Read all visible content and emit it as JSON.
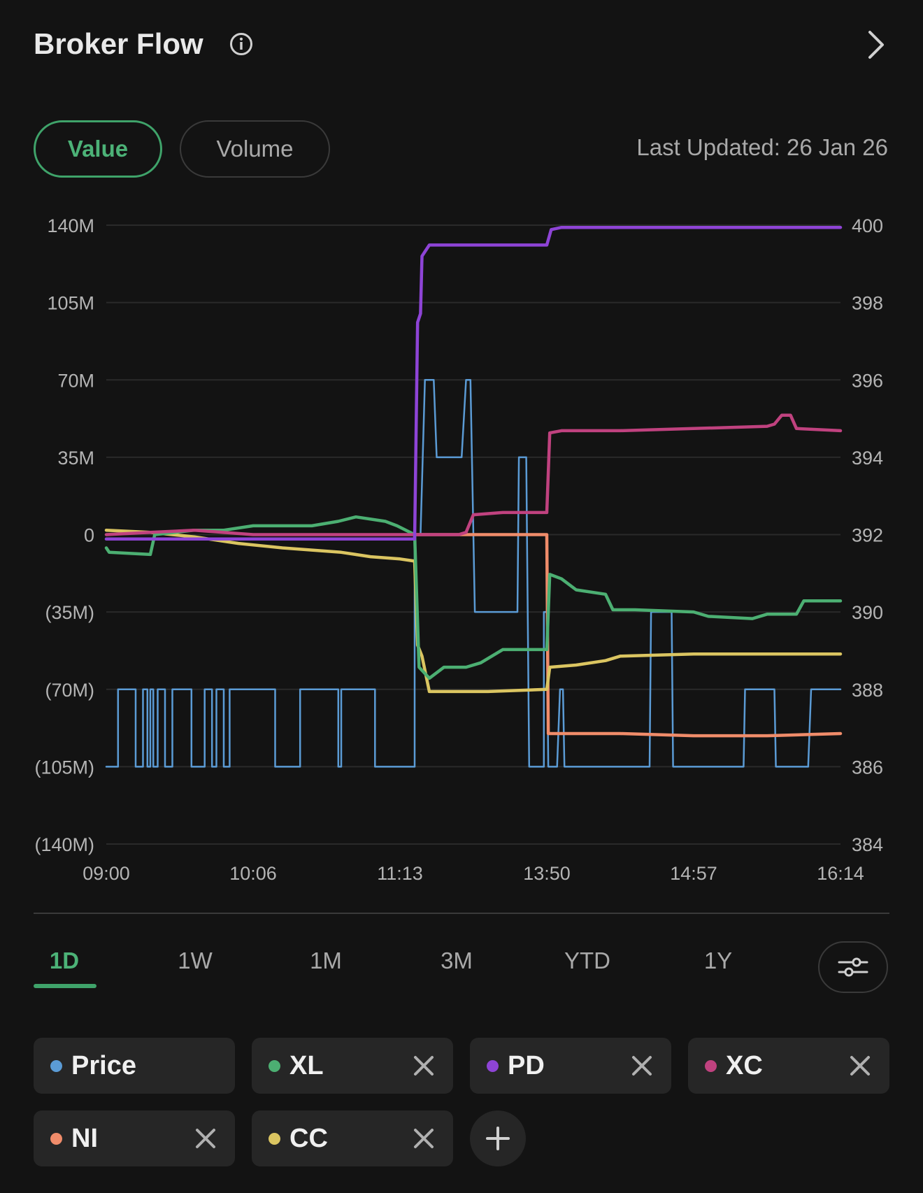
{
  "header": {
    "title": "Broker Flow",
    "info_icon": "info-icon",
    "next_icon": "chevron-right-icon"
  },
  "toggle": {
    "value_label": "Value",
    "volume_label": "Volume",
    "selected": "Value"
  },
  "last_updated": "Last Updated: 26 Jan 26",
  "chart_data": {
    "type": "line",
    "x_tick_labels": [
      "09:00",
      "10:06",
      "11:13",
      "13:50",
      "14:57",
      "16:14"
    ],
    "y_left_tick_labels": [
      "140M",
      "105M",
      "70M",
      "35M",
      "0",
      "(35M)",
      "(70M)",
      "(105M)",
      "(140M)"
    ],
    "y_right_tick_labels": [
      "400",
      "398",
      "396",
      "394",
      "392",
      "390",
      "388",
      "386",
      "384"
    ],
    "y_left_range": [
      -140,
      140
    ],
    "y_left_unit": "M",
    "y_right_range": [
      384,
      400
    ],
    "grid": "horizontal",
    "x_domain": [
      0,
      5
    ],
    "series": [
      {
        "name": "Price",
        "axis": "right",
        "color": "#5b9bd5",
        "points": [
          [
            0,
            386
          ],
          [
            0.08,
            386
          ],
          [
            0.08,
            388
          ],
          [
            0.2,
            388
          ],
          [
            0.2,
            386
          ],
          [
            0.25,
            386
          ],
          [
            0.25,
            388
          ],
          [
            0.28,
            388
          ],
          [
            0.28,
            386
          ],
          [
            0.3,
            386
          ],
          [
            0.3,
            388
          ],
          [
            0.32,
            388
          ],
          [
            0.32,
            386
          ],
          [
            0.35,
            386
          ],
          [
            0.35,
            388
          ],
          [
            0.4,
            388
          ],
          [
            0.4,
            386
          ],
          [
            0.45,
            386
          ],
          [
            0.45,
            388
          ],
          [
            0.58,
            388
          ],
          [
            0.58,
            386
          ],
          [
            0.67,
            386
          ],
          [
            0.67,
            388
          ],
          [
            0.72,
            388
          ],
          [
            0.72,
            386
          ],
          [
            0.75,
            386
          ],
          [
            0.75,
            388
          ],
          [
            0.8,
            388
          ],
          [
            0.8,
            386
          ],
          [
            0.84,
            386
          ],
          [
            0.84,
            388
          ],
          [
            1.15,
            388
          ],
          [
            1.15,
            386
          ],
          [
            1.32,
            386
          ],
          [
            1.32,
            388
          ],
          [
            1.58,
            388
          ],
          [
            1.58,
            386
          ],
          [
            1.6,
            386
          ],
          [
            1.6,
            388
          ],
          [
            1.83,
            388
          ],
          [
            1.83,
            386
          ],
          [
            2.1,
            386
          ],
          [
            2.1,
            392
          ],
          [
            2.14,
            392
          ],
          [
            2.17,
            396
          ],
          [
            2.23,
            396
          ],
          [
            2.25,
            394
          ],
          [
            2.42,
            394
          ],
          [
            2.45,
            396
          ],
          [
            2.48,
            396
          ],
          [
            2.51,
            390
          ],
          [
            2.8,
            390
          ],
          [
            2.81,
            394
          ],
          [
            2.86,
            394
          ],
          [
            2.88,
            386
          ],
          [
            2.98,
            386
          ],
          [
            2.98,
            390
          ],
          [
            3.0,
            390
          ],
          [
            3.01,
            386
          ],
          [
            3.07,
            386
          ],
          [
            3.09,
            388
          ],
          [
            3.11,
            388
          ],
          [
            3.12,
            386
          ],
          [
            3.7,
            386
          ],
          [
            3.71,
            390
          ],
          [
            3.85,
            390
          ],
          [
            3.86,
            386
          ],
          [
            4.34,
            386
          ],
          [
            4.35,
            388
          ],
          [
            4.55,
            388
          ],
          [
            4.56,
            386
          ],
          [
            4.78,
            386
          ],
          [
            4.8,
            388
          ],
          [
            5,
            388
          ]
        ]
      },
      {
        "name": "XL",
        "axis": "left",
        "color": "#4caf72",
        "points": [
          [
            0,
            -6
          ],
          [
            0.02,
            -8
          ],
          [
            0.3,
            -9
          ],
          [
            0.33,
            0
          ],
          [
            0.6,
            2
          ],
          [
            0.8,
            2
          ],
          [
            1.0,
            4
          ],
          [
            1.4,
            4
          ],
          [
            1.58,
            6
          ],
          [
            1.7,
            8
          ],
          [
            1.9,
            6
          ],
          [
            1.98,
            4
          ],
          [
            2.1,
            0
          ],
          [
            2.13,
            -60
          ],
          [
            2.2,
            -65
          ],
          [
            2.3,
            -60
          ],
          [
            2.45,
            -60
          ],
          [
            2.55,
            -58
          ],
          [
            2.7,
            -52
          ],
          [
            3.0,
            -52
          ],
          [
            3.02,
            -18
          ],
          [
            3.1,
            -20
          ],
          [
            3.2,
            -25
          ],
          [
            3.4,
            -27
          ],
          [
            3.45,
            -34
          ],
          [
            3.6,
            -34
          ],
          [
            4.0,
            -35
          ],
          [
            4.1,
            -37
          ],
          [
            4.4,
            -38
          ],
          [
            4.5,
            -36
          ],
          [
            4.7,
            -36
          ],
          [
            4.75,
            -30
          ],
          [
            5,
            -30
          ]
        ]
      },
      {
        "name": "PD",
        "axis": "left",
        "color": "#8e44d6",
        "points": [
          [
            0,
            -2
          ],
          [
            1.0,
            -2
          ],
          [
            2.1,
            -2
          ],
          [
            2.12,
            96
          ],
          [
            2.14,
            100
          ],
          [
            2.15,
            126
          ],
          [
            2.17,
            128
          ],
          [
            2.2,
            131
          ],
          [
            2.6,
            131
          ],
          [
            3.0,
            131
          ],
          [
            3.03,
            138
          ],
          [
            3.1,
            139
          ],
          [
            4.0,
            139
          ],
          [
            5,
            139
          ]
        ]
      },
      {
        "name": "XC",
        "axis": "left",
        "color": "#c0427f",
        "points": [
          [
            0,
            0
          ],
          [
            0.3,
            1
          ],
          [
            0.6,
            2
          ],
          [
            1.0,
            0
          ],
          [
            2.1,
            0
          ],
          [
            2.4,
            0
          ],
          [
            2.45,
            1
          ],
          [
            2.5,
            9
          ],
          [
            2.7,
            10
          ],
          [
            3.0,
            10
          ],
          [
            3.02,
            46
          ],
          [
            3.1,
            47
          ],
          [
            3.5,
            47
          ],
          [
            4.0,
            48
          ],
          [
            4.5,
            49
          ],
          [
            4.55,
            50
          ],
          [
            4.6,
            54
          ],
          [
            4.66,
            54
          ],
          [
            4.7,
            48
          ],
          [
            5,
            47
          ]
        ]
      },
      {
        "name": "NI",
        "axis": "left",
        "color": "#f08c6a",
        "points": [
          [
            2.1,
            0
          ],
          [
            3.0,
            0
          ],
          [
            3.01,
            -90
          ],
          [
            3.5,
            -90
          ],
          [
            4.0,
            -91
          ],
          [
            4.5,
            -91
          ],
          [
            5,
            -90
          ]
        ]
      },
      {
        "name": "CC",
        "axis": "left",
        "color": "#dbc561",
        "points": [
          [
            0,
            2
          ],
          [
            0.3,
            1
          ],
          [
            0.6,
            -1
          ],
          [
            0.9,
            -4
          ],
          [
            1.2,
            -6
          ],
          [
            1.6,
            -8
          ],
          [
            1.8,
            -10
          ],
          [
            2.0,
            -11
          ],
          [
            2.1,
            -12
          ],
          [
            2.12,
            -50
          ],
          [
            2.15,
            -55
          ],
          [
            2.2,
            -71
          ],
          [
            2.6,
            -71
          ],
          [
            3.0,
            -70
          ],
          [
            3.02,
            -60
          ],
          [
            3.2,
            -59
          ],
          [
            3.4,
            -57
          ],
          [
            3.5,
            -55
          ],
          [
            4.0,
            -54
          ],
          [
            4.5,
            -54
          ],
          [
            5,
            -54
          ]
        ]
      }
    ]
  },
  "ranges": {
    "items": [
      "1D",
      "1W",
      "1M",
      "3M",
      "YTD",
      "1Y"
    ],
    "selected": "1D",
    "settings_icon": "sliders-icon"
  },
  "legend_chips": [
    {
      "label": "Price",
      "color": "#5b9bd5",
      "removable": false
    },
    {
      "label": "XL",
      "color": "#4caf72",
      "removable": true
    },
    {
      "label": "PD",
      "color": "#8e44d6",
      "removable": true
    },
    {
      "label": "XC",
      "color": "#c0427f",
      "removable": true
    },
    {
      "label": "NI",
      "color": "#f08c6a",
      "removable": true
    },
    {
      "label": "CC",
      "color": "#dbc561",
      "removable": true
    }
  ],
  "add_icon": "plus-icon"
}
